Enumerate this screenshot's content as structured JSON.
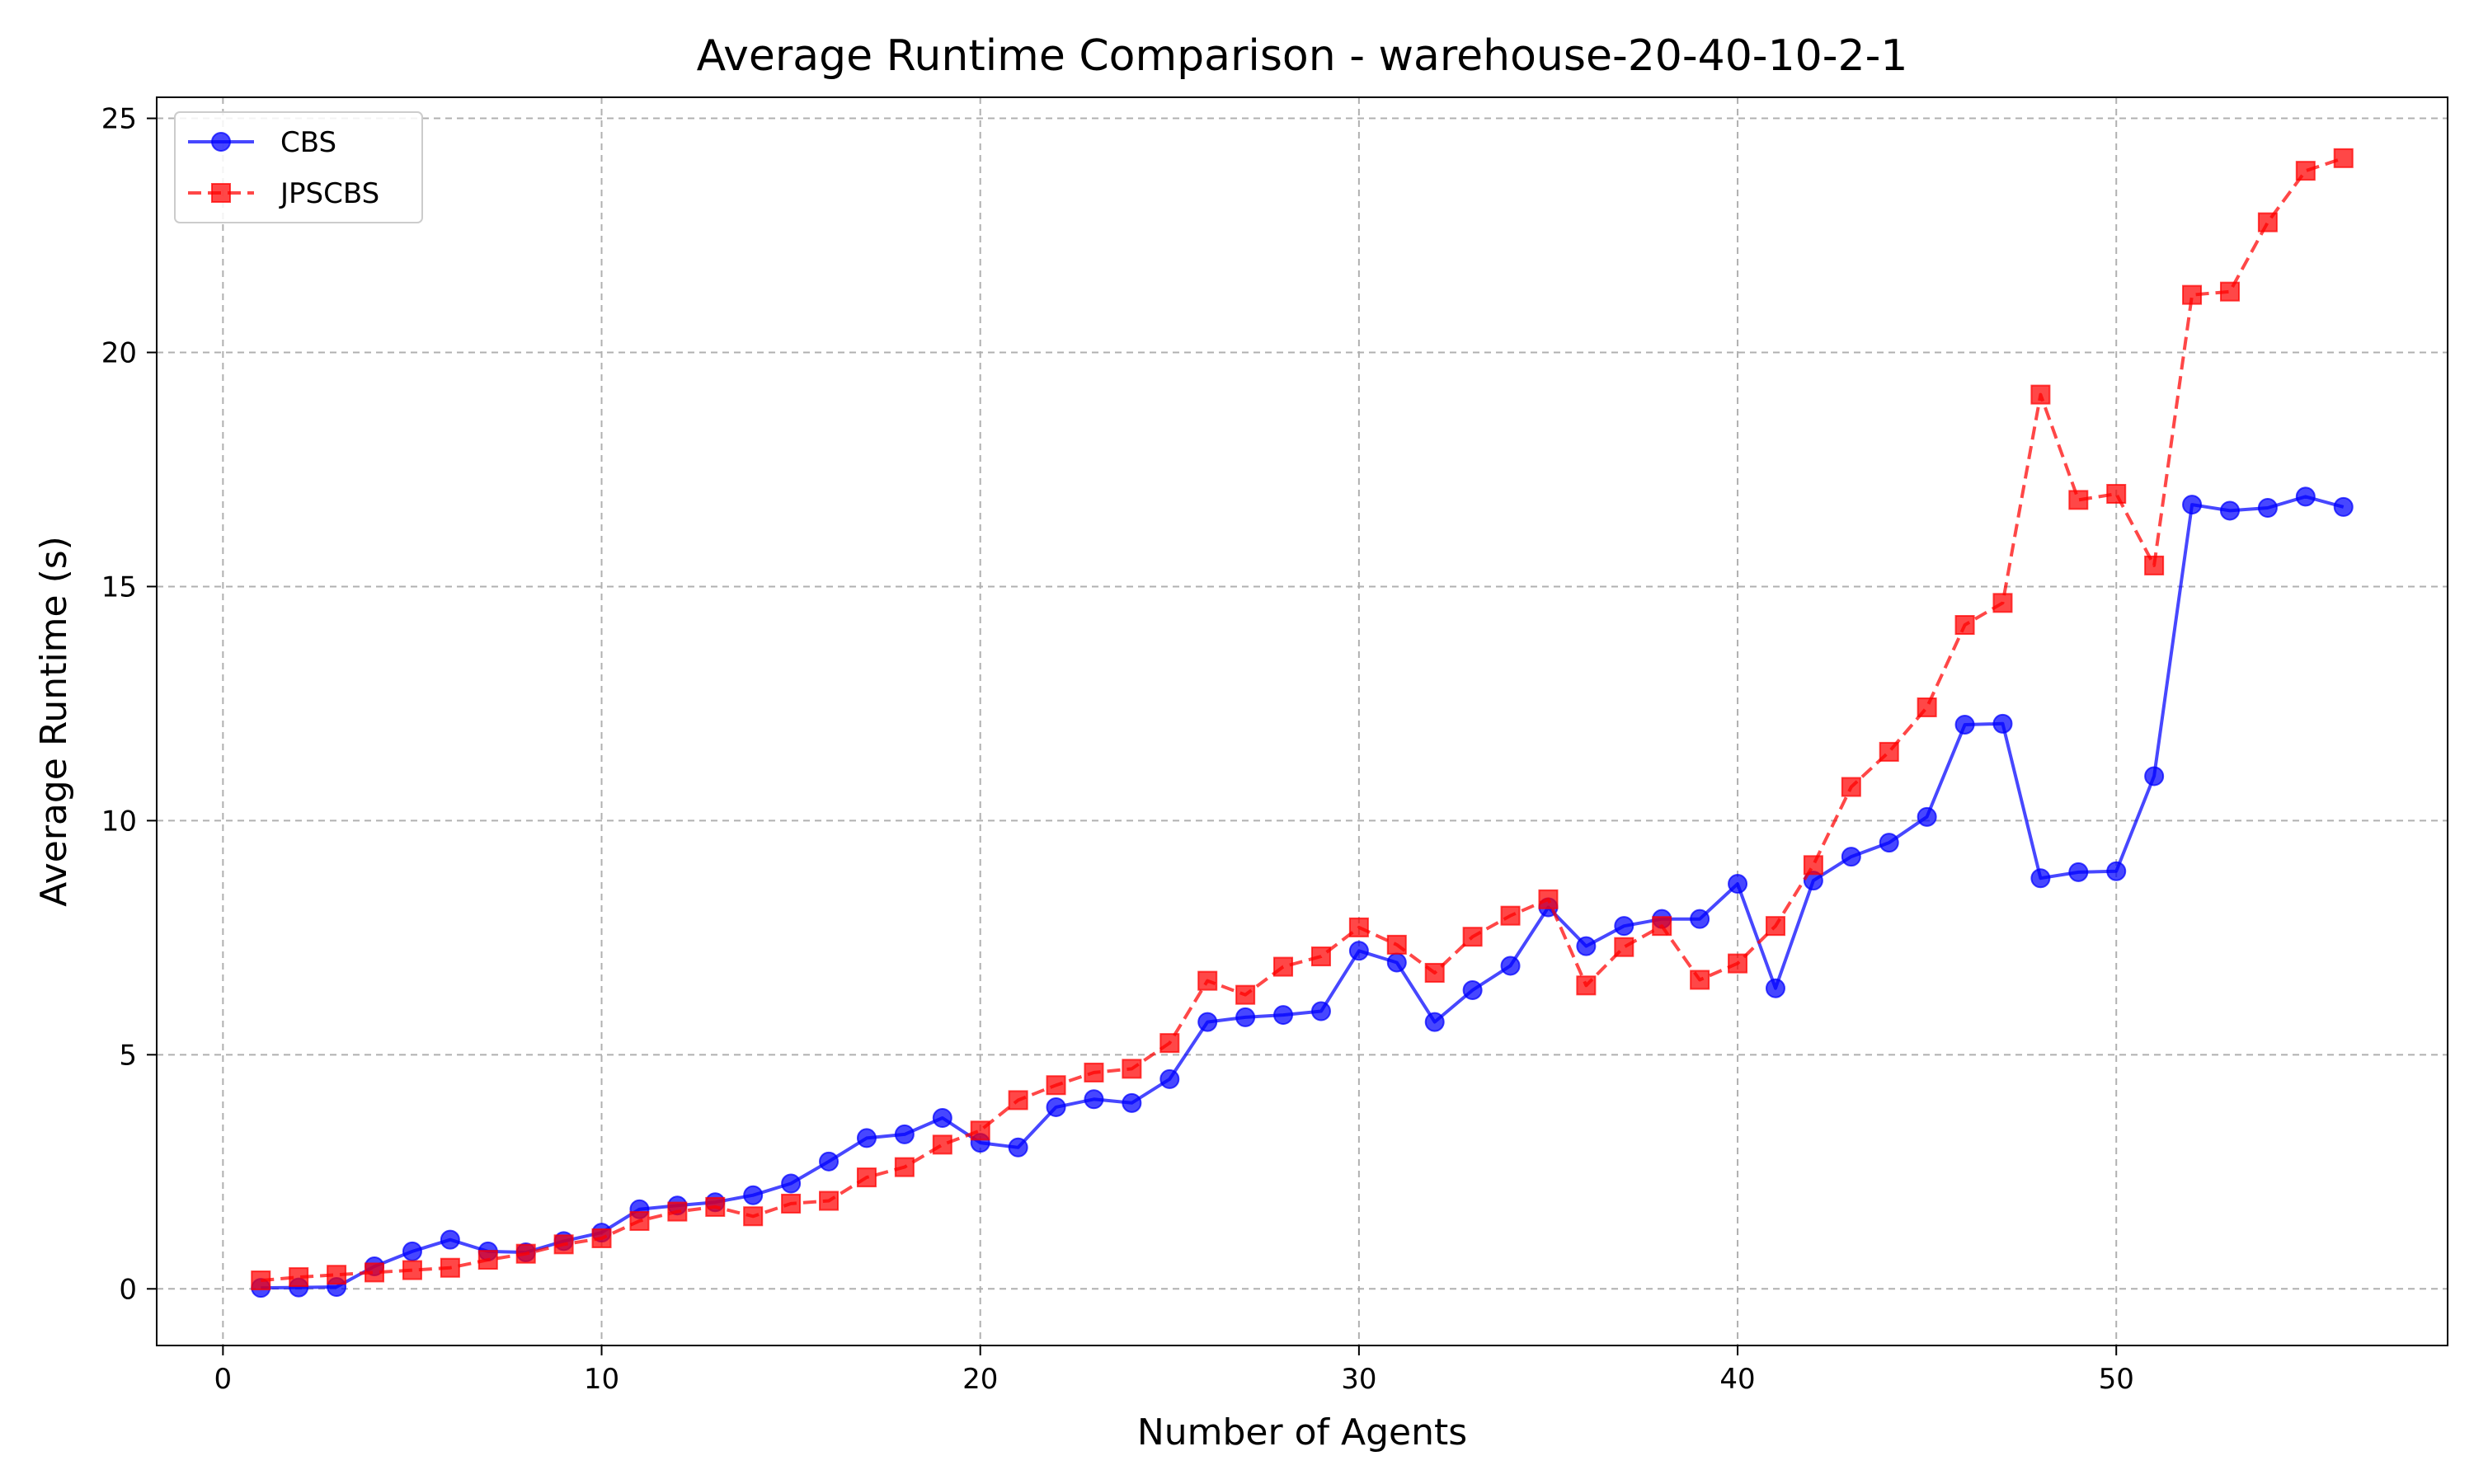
{
  "chart_data": {
    "type": "line",
    "title": "Average Runtime Comparison - warehouse-20-40-10-2-1",
    "xlabel": "Number of Agents",
    "ylabel": "Average Runtime (s)",
    "xlim": [
      -1.75,
      58.75
    ],
    "ylim": [
      -1.21,
      25.45
    ],
    "xticks": [
      0,
      10,
      20,
      30,
      40,
      50
    ],
    "yticks": [
      0,
      5,
      10,
      15,
      20,
      25
    ],
    "grid": true,
    "legend_position": "top-left",
    "x": [
      1,
      2,
      3,
      4,
      5,
      6,
      7,
      8,
      9,
      10,
      11,
      12,
      13,
      14,
      15,
      16,
      17,
      18,
      19,
      20,
      21,
      22,
      23,
      24,
      25,
      26,
      27,
      28,
      29,
      30,
      31,
      32,
      33,
      34,
      35,
      36,
      37,
      38,
      39,
      40,
      41,
      42,
      43,
      44,
      45,
      46,
      47,
      48,
      49,
      50,
      51,
      52,
      53,
      54,
      55,
      56
    ],
    "series": [
      {
        "name": "CBS",
        "color": "#0000ff",
        "marker": "circle",
        "line_style": "solid",
        "values": [
          0.02,
          0.03,
          0.04,
          0.48,
          0.8,
          1.05,
          0.8,
          0.78,
          1.02,
          1.2,
          1.7,
          1.78,
          1.85,
          2.0,
          2.25,
          2.72,
          3.22,
          3.3,
          3.65,
          3.12,
          3.02,
          3.88,
          4.05,
          3.97,
          4.48,
          5.7,
          5.8,
          5.85,
          5.93,
          7.22,
          6.97,
          5.7,
          6.38,
          6.9,
          8.15,
          7.32,
          7.75,
          7.9,
          7.9,
          8.65,
          6.42,
          8.72,
          9.23,
          9.53,
          10.08,
          12.05,
          12.07,
          8.77,
          8.9,
          8.92,
          10.95,
          16.75,
          16.62,
          16.68,
          16.92,
          16.7
        ]
      },
      {
        "name": "JPSCBS",
        "color": "#ff0000",
        "marker": "square",
        "line_style": "dashed",
        "values": [
          0.18,
          0.25,
          0.3,
          0.35,
          0.4,
          0.45,
          0.62,
          0.75,
          0.95,
          1.08,
          1.45,
          1.65,
          1.75,
          1.55,
          1.82,
          1.88,
          2.38,
          2.6,
          3.08,
          3.38,
          4.03,
          4.35,
          4.62,
          4.7,
          5.25,
          6.58,
          6.28,
          6.88,
          7.1,
          7.72,
          7.35,
          6.75,
          7.52,
          7.97,
          8.32,
          6.48,
          7.3,
          7.75,
          6.6,
          6.95,
          7.75,
          9.05,
          10.72,
          11.47,
          12.42,
          14.18,
          14.65,
          19.1,
          16.85,
          16.98,
          15.45,
          21.23,
          21.3,
          22.78,
          23.88,
          24.15
        ]
      }
    ]
  }
}
